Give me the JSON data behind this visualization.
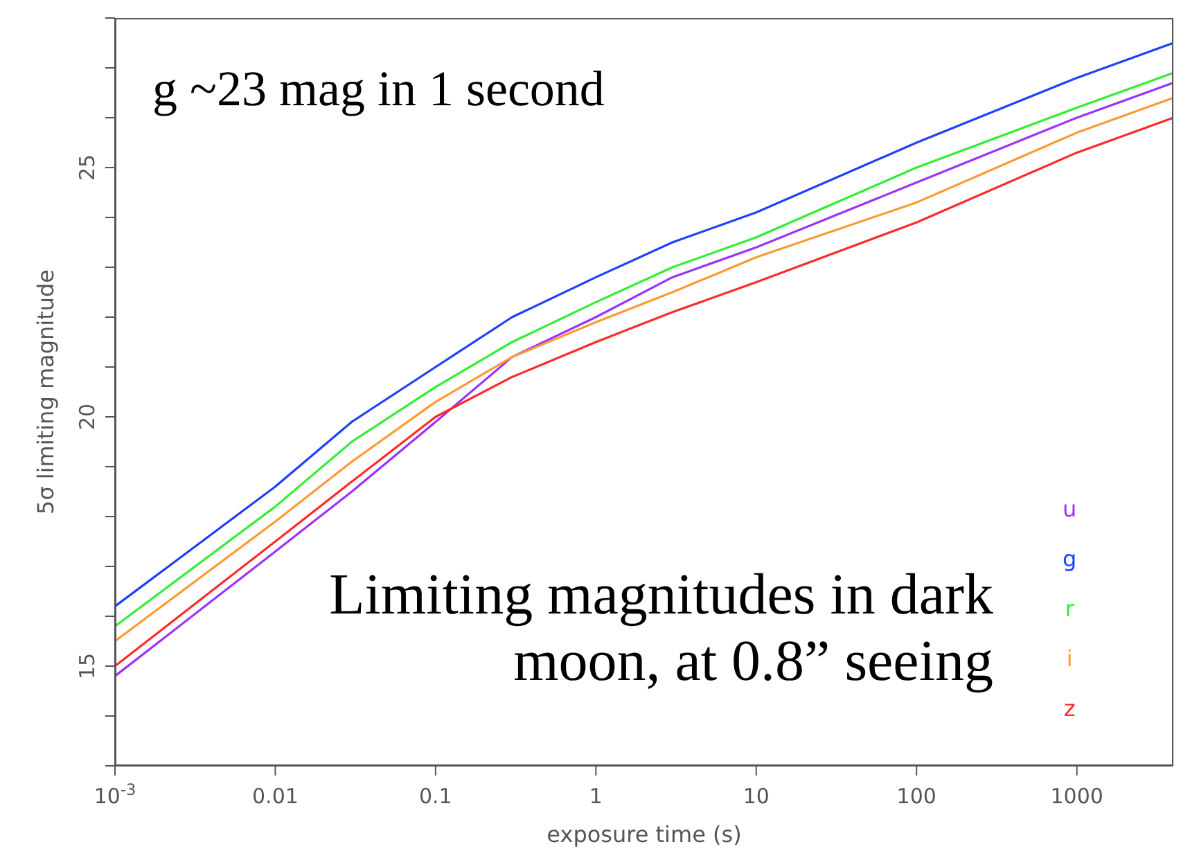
{
  "chart_data": {
    "type": "line",
    "xlabel": "exposure time (s)",
    "ylabel": "5σ limiting magnitude",
    "annotations": [
      "g ~23 mag in 1 second",
      "Limiting magnitudes in dark moon, at 0.8” seeing"
    ],
    "x": [
      0.001,
      0.01,
      0.03,
      0.1,
      0.3,
      1,
      3,
      10,
      100,
      1000,
      4000
    ],
    "series": [
      {
        "name": "u",
        "color": "#9933ff",
        "values": [
          14.8,
          17.3,
          18.5,
          19.9,
          21.2,
          22.0,
          22.8,
          23.4,
          24.7,
          26.0,
          26.7
        ]
      },
      {
        "name": "g",
        "color": "#2040ff",
        "values": [
          16.2,
          18.6,
          19.9,
          21.0,
          22.0,
          22.8,
          23.5,
          24.1,
          25.5,
          26.8,
          27.5
        ]
      },
      {
        "name": "r",
        "color": "#33ee33",
        "values": [
          15.8,
          18.2,
          19.5,
          20.6,
          21.5,
          22.3,
          23.0,
          23.6,
          25.0,
          26.2,
          26.9
        ]
      },
      {
        "name": "i",
        "color": "#ff9933",
        "values": [
          15.5,
          17.9,
          19.1,
          20.3,
          21.2,
          21.9,
          22.5,
          23.2,
          24.3,
          25.7,
          26.4
        ]
      },
      {
        "name": "z",
        "color": "#ff2a2a",
        "values": [
          15.0,
          17.5,
          18.7,
          20.0,
          20.8,
          21.5,
          22.1,
          22.7,
          23.9,
          25.3,
          26.0
        ]
      }
    ],
    "log": "x",
    "xlim": [
      0.001,
      4000
    ],
    "xticks": [
      {
        "value": 0.001,
        "label": "10$^{-3}$"
      },
      0.01,
      0.1,
      1,
      10,
      100,
      1000
    ],
    "ylim": [
      13,
      28
    ],
    "yticks": [
      {
        "value": 13,
        "label": null
      },
      {
        "value": 14,
        "label": null
      },
      15,
      {
        "value": 16,
        "label": null
      },
      {
        "value": 17,
        "label": null
      },
      {
        "value": 18,
        "label": null
      },
      {
        "value": 19,
        "label": null
      },
      20,
      {
        "value": 21,
        "label": null
      },
      {
        "value": 22,
        "label": null
      },
      {
        "value": 23,
        "label": null
      },
      {
        "value": 24,
        "label": null
      },
      25,
      {
        "value": 26,
        "label": null
      },
      {
        "value": 27,
        "label": null
      },
      {
        "value": 28,
        "label": null
      }
    ],
    "grid": false,
    "legend": "bottom right",
    "marker": "none",
    "line_style": "solid"
  }
}
